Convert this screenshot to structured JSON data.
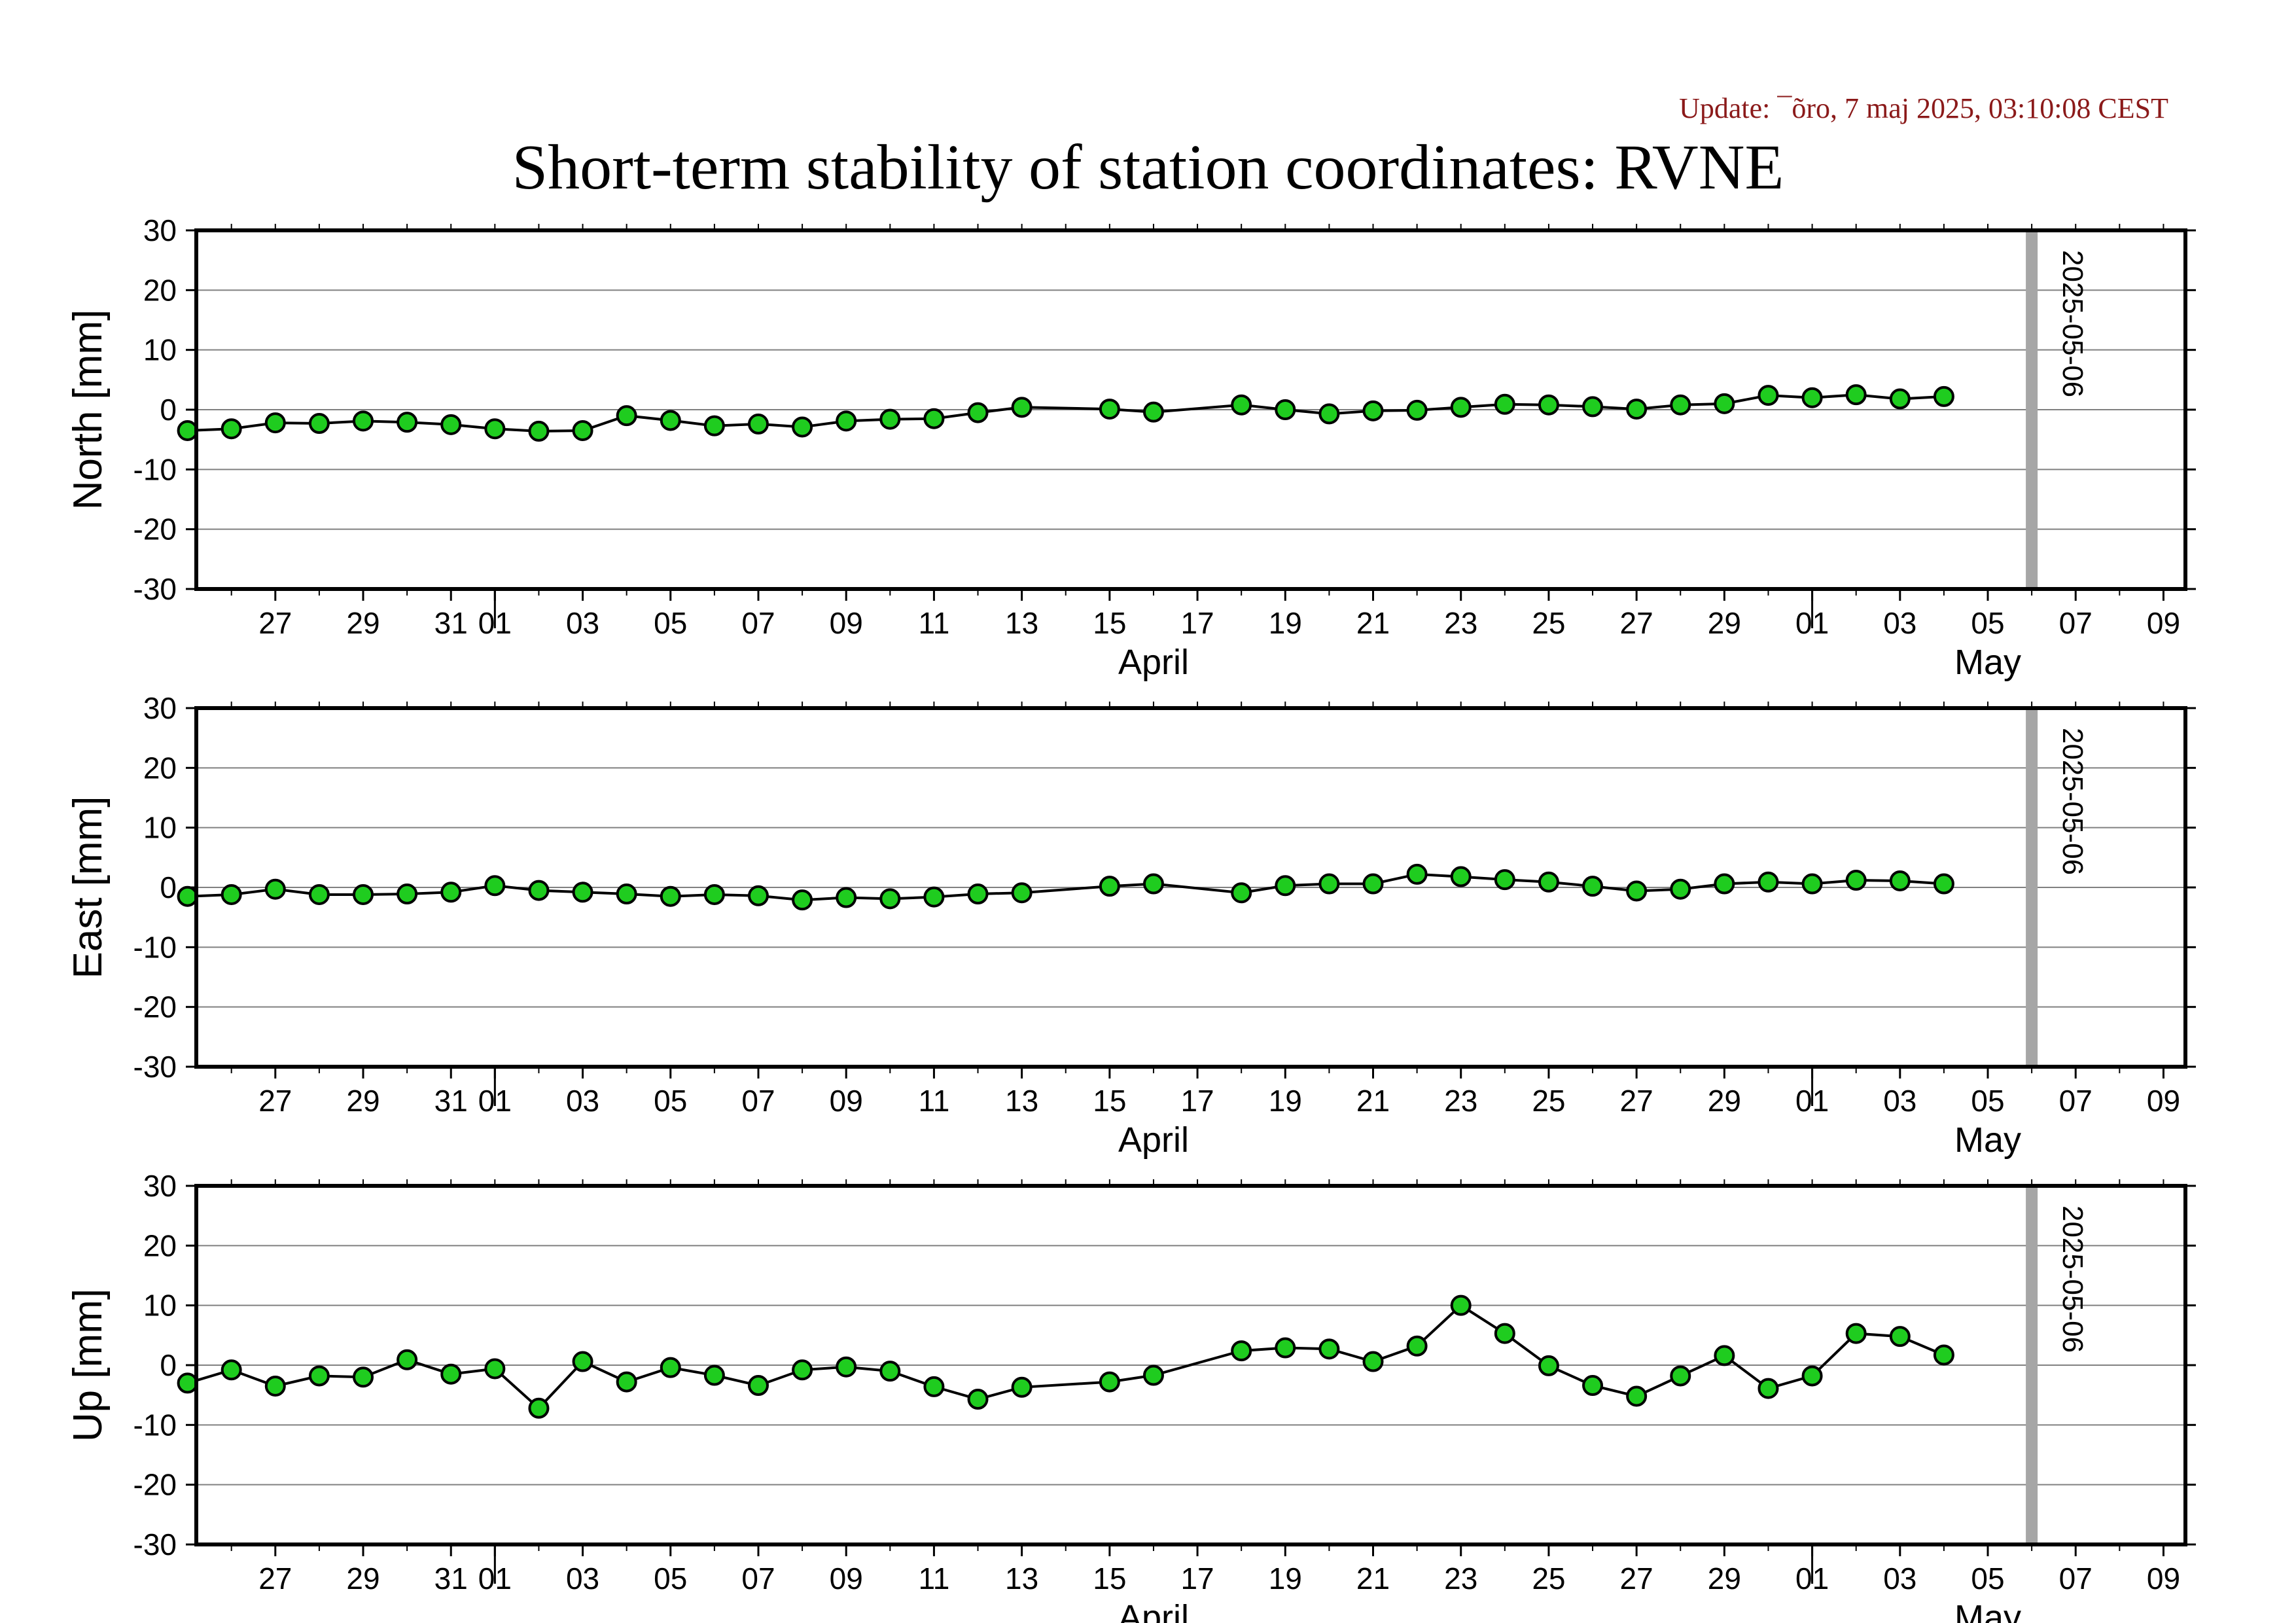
{
  "update_text": "Update: ¯õro, 7 maj 2025, 03:10:08 CEST",
  "title": "Short-term stability of station coordinates: RVNE",
  "chart_data": {
    "type": "scatter",
    "x_axis": {
      "unit": "day",
      "start_date": "2025-03-25",
      "range_days": [
        0.2,
        45.5
      ],
      "tick_labels": [
        "27",
        "29",
        "31",
        "01",
        "03",
        "05",
        "07",
        "09",
        "11",
        "13",
        "15",
        "17",
        "19",
        "21",
        "23",
        "25",
        "27",
        "29",
        "01",
        "03",
        "05",
        "07",
        "09"
      ],
      "tick_dates": [
        "2025-03-27",
        "2025-03-29",
        "2025-03-31",
        "2025-04-01",
        "2025-04-03",
        "2025-04-05",
        "2025-04-07",
        "2025-04-09",
        "2025-04-11",
        "2025-04-13",
        "2025-04-15",
        "2025-04-17",
        "2025-04-19",
        "2025-04-21",
        "2025-04-23",
        "2025-04-25",
        "2025-04-27",
        "2025-04-29",
        "2025-05-01",
        "2025-05-03",
        "2025-05-05",
        "2025-05-07",
        "2025-05-09"
      ],
      "month_labels": [
        {
          "label": "April",
          "date": "2025-04-16"
        },
        {
          "label": "May",
          "date": "2025-05-05"
        }
      ],
      "month_boundaries": [
        "2025-04-01",
        "2025-05-01"
      ]
    },
    "marker": {
      "date": "2025-05-06",
      "label": "2025-05-06",
      "color": "#a6a6a6"
    },
    "point_color": "#1fcc1f",
    "dates": [
      "2025-03-25",
      "2025-03-26",
      "2025-03-27",
      "2025-03-28",
      "2025-03-29",
      "2025-03-30",
      "2025-03-31",
      "2025-04-01",
      "2025-04-02",
      "2025-04-03",
      "2025-04-04",
      "2025-04-05",
      "2025-04-06",
      "2025-04-07",
      "2025-04-08",
      "2025-04-09",
      "2025-04-10",
      "2025-04-11",
      "2025-04-12",
      "2025-04-13",
      "2025-04-15",
      "2025-04-16",
      "2025-04-18",
      "2025-04-19",
      "2025-04-20",
      "2025-04-21",
      "2025-04-22",
      "2025-04-23",
      "2025-04-24",
      "2025-04-25",
      "2025-04-26",
      "2025-04-27",
      "2025-04-28",
      "2025-04-29",
      "2025-04-30",
      "2025-05-01",
      "2025-05-02",
      "2025-05-03",
      "2025-05-04"
    ],
    "panels": [
      {
        "name": "north",
        "ylabel": "North [mm]",
        "ylim": [
          -30,
          30
        ],
        "yticks": [
          -30,
          -20,
          -10,
          0,
          10,
          20,
          30
        ],
        "values": [
          -3.5,
          -3.2,
          -2.2,
          -2.3,
          -1.9,
          -2.1,
          -2.5,
          -3.2,
          -3.6,
          -3.5,
          -1.0,
          -1.8,
          -2.7,
          -2.4,
          -2.9,
          -1.9,
          -1.6,
          -1.5,
          -0.5,
          0.4,
          0.1,
          -0.4,
          0.8,
          0.0,
          -0.7,
          -0.2,
          -0.1,
          0.4,
          0.9,
          0.8,
          0.5,
          0.1,
          0.8,
          1.0,
          2.4,
          2.0,
          2.5,
          1.8,
          2.2
        ]
      },
      {
        "name": "east",
        "ylabel": "East [mm]",
        "ylim": [
          -30,
          30
        ],
        "yticks": [
          -30,
          -20,
          -10,
          0,
          10,
          20,
          30
        ],
        "values": [
          -1.5,
          -1.2,
          -0.3,
          -1.2,
          -1.2,
          -1.1,
          -0.8,
          0.3,
          -0.5,
          -0.8,
          -1.1,
          -1.5,
          -1.2,
          -1.4,
          -2.1,
          -1.7,
          -1.9,
          -1.6,
          -1.1,
          -0.9,
          0.2,
          0.6,
          -0.9,
          0.3,
          0.6,
          0.6,
          2.2,
          1.8,
          1.3,
          0.9,
          0.2,
          -0.6,
          -0.3,
          0.6,
          0.9,
          0.6,
          1.2,
          1.1,
          0.6
        ]
      },
      {
        "name": "up",
        "ylabel": "Up [mm]",
        "ylim": [
          -30,
          30
        ],
        "yticks": [
          -30,
          -20,
          -10,
          0,
          10,
          20,
          30
        ],
        "values": [
          -3.0,
          -0.8,
          -3.5,
          -1.8,
          -2.0,
          0.9,
          -1.5,
          -0.6,
          -7.2,
          0.6,
          -2.8,
          -0.4,
          -1.7,
          -3.4,
          -0.8,
          -0.3,
          -1.0,
          -3.6,
          -5.7,
          -3.7,
          -2.8,
          -1.7,
          2.4,
          2.9,
          2.7,
          0.6,
          3.2,
          10.0,
          5.3,
          -0.1,
          -3.4,
          -5.2,
          -1.8,
          1.6,
          -3.9,
          -1.8,
          5.3,
          4.8,
          1.7
        ]
      }
    ]
  }
}
